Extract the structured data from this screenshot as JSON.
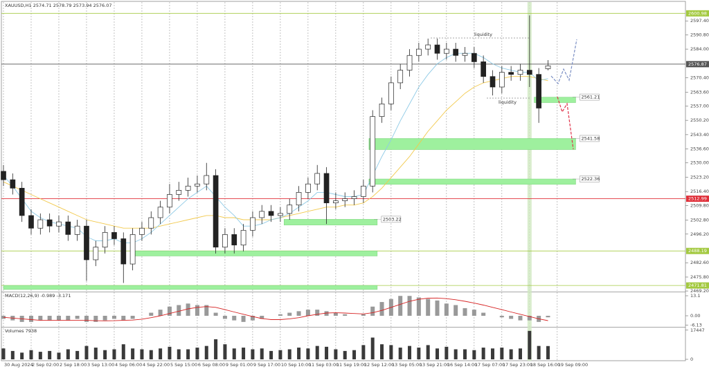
{
  "chart_data": [
    {
      "type": "candlestick",
      "title": "XAUUSD,H1",
      "categories": [
        "30 Aug 2024",
        null,
        null,
        "2 Sep 02:00",
        null,
        null,
        "2 Sep 18:00",
        null,
        null,
        "3 Sep 13:00",
        null,
        null,
        "4 Sep 06:00",
        null,
        null,
        "4 Sep 22:00",
        null,
        null,
        "5 Sep 15:00",
        null,
        null,
        "6 Sep 08:00",
        null,
        null,
        "9 Sep 01:00",
        null,
        null,
        "9 Sep 17:00",
        null,
        null,
        "10 Sep 10:00",
        null,
        null,
        "11 Sep 03:00",
        null,
        null,
        "11 Sep 19:00",
        null,
        null,
        "12 Sep 12:00",
        null,
        null,
        "13 Sep 05:00",
        null,
        null,
        "13 Sep 21:00",
        null,
        null,
        "16 Sep 14:00",
        null,
        null,
        "17 Sep 07:00",
        null,
        null,
        "17 Sep 23:00",
        null,
        null,
        "18 Sep 16:00",
        null,
        null,
        "19 Sep 09:00",
        null,
        null,
        null
      ],
      "open": [
        2526,
        2522,
        2518,
        2505,
        2499,
        2503,
        2500,
        2502,
        2496,
        2500,
        2484,
        2490,
        2497,
        2494,
        2482,
        2496,
        2499,
        2504,
        2509,
        2515,
        2517,
        2519,
        2520,
        2524,
        2490,
        2496,
        2491,
        2498,
        2504,
        2507,
        2505,
        2506,
        2510,
        2516,
        2520,
        2525,
        2511,
        2512,
        2513,
        2514,
        2519,
        2552,
        2558,
        2568,
        2574,
        2581,
        2584,
        2586,
        2582,
        2584,
        2581,
        2582,
        2578,
        2571,
        2566,
        2573,
        2572,
        2574,
        2572,
        2574.71,
        null,
        null,
        null,
        null
      ],
      "high": [
        2529,
        2525,
        2521,
        2508,
        2506,
        2506,
        2505,
        2505,
        2503,
        2503,
        2493,
        2500,
        2500,
        2497,
        2499,
        2502,
        2507,
        2512,
        2520,
        2521,
        2523,
        2524,
        2530,
        2527,
        2499,
        2499,
        2501,
        2507,
        2510,
        2510,
        2509,
        2513,
        2519,
        2523,
        2529,
        2528,
        2516,
        2516,
        2517,
        2522,
        2555,
        2561,
        2571,
        2577,
        2584,
        2587,
        2589,
        2589,
        2587,
        2587,
        2585,
        2585,
        2581,
        2574,
        2576,
        2576,
        2577,
        2600,
        2575,
        2578.79,
        null,
        null,
        null,
        null
      ],
      "low": [
        2519,
        2515,
        2502,
        2496,
        2496,
        2497,
        2497,
        2493,
        2493,
        2474,
        2481,
        2487,
        2491,
        2473,
        2479,
        2493,
        2496,
        2501,
        2506,
        2512,
        2514,
        2516,
        2517,
        2487,
        2487,
        2487,
        2488,
        2495,
        2501,
        2502,
        2502,
        2503,
        2507,
        2513,
        2517,
        2501,
        2508,
        2509,
        2510,
        2511,
        2516,
        2549,
        2555,
        2565,
        2571,
        2578,
        2581,
        2579,
        2579,
        2578,
        2578,
        2575,
        2568,
        2562,
        2563,
        2569,
        2569,
        2566,
        2549,
        2573.94,
        null,
        null,
        null,
        null
      ],
      "close": [
        2522,
        2518,
        2505,
        2499,
        2503,
        2500,
        2502,
        2496,
        2500,
        2484,
        2490,
        2497,
        2494,
        2482,
        2496,
        2499,
        2504,
        2509,
        2515,
        2517,
        2519,
        2520,
        2524,
        2490,
        2496,
        2491,
        2498,
        2504,
        2507,
        2505,
        2506,
        2510,
        2516,
        2520,
        2525,
        2511,
        2512,
        2513,
        2514,
        2519,
        2552,
        2558,
        2568,
        2574,
        2581,
        2584,
        2586,
        2582,
        2584,
        2581,
        2582,
        2578,
        2571,
        2566,
        2573,
        2572,
        2574,
        2572,
        2556,
        2576.07,
        null,
        null,
        null,
        null
      ],
      "series": [
        {
          "color": "#f2c94c",
          "values": [
            2521,
            2519,
            2517,
            2515,
            2513,
            2511,
            2509,
            2507,
            2505,
            2503,
            2502,
            2501,
            2500,
            2499,
            2499,
            2499,
            2499,
            2500,
            2501,
            2502,
            2503,
            2504,
            2505,
            2505,
            2504,
            2504,
            2503,
            2503,
            2503,
            2503,
            2504,
            2505,
            2506,
            2507,
            2508,
            2509,
            2509,
            2510,
            2510,
            2511,
            2514,
            2518,
            2523,
            2528,
            2533,
            2539,
            2545,
            2550,
            2555,
            2559,
            2563,
            2566,
            2568,
            2569,
            2570,
            2571,
            2571,
            2571,
            2570,
            2569,
            null,
            null,
            null,
            null
          ]
        },
        {
          "color": "#8ecae6",
          "values": [
            2524,
            2519,
            2513,
            2507,
            2504,
            2502,
            2501,
            2500,
            2499,
            2495,
            2493,
            2493,
            2494,
            2492,
            2492,
            2494,
            2497,
            2501,
            2505,
            2509,
            2513,
            2516,
            2519,
            2514,
            2509,
            2505,
            2500,
            2500,
            2501,
            2503,
            2504,
            2506,
            2509,
            2512,
            2516,
            2516,
            2515,
            2514,
            2514,
            2515,
            2524,
            2533,
            2541,
            2550,
            2558,
            2566,
            2572,
            2577,
            2580,
            2582,
            2582,
            2582,
            2580,
            2577,
            2575,
            2574,
            2573,
            2573,
            2569,
            2570,
            null,
            null,
            null,
            null
          ]
        }
      ],
      "ylim": [
        2468.9,
        2602.4
      ],
      "yticks": [
        {
          "value": 2597.4,
          "label": "2597.40"
        },
        {
          "value": 2590.8,
          "label": "2590.80"
        },
        {
          "value": 2584,
          "label": "2584.00"
        },
        {
          "value": 2570.4,
          "label": "2570.40"
        },
        {
          "value": 2563.6,
          "label": "2563.60"
        },
        {
          "value": 2557,
          "label": "2557.00"
        },
        {
          "value": 2550.2,
          "label": "2550.20"
        },
        {
          "value": 2543.4,
          "label": "2543.40"
        },
        {
          "value": 2536.6,
          "label": "2536.60"
        },
        {
          "value": 2530,
          "label": "2530.00"
        },
        {
          "value": 2523.2,
          "label": "2523.20"
        },
        {
          "value": 2516.4,
          "label": "2516.40"
        },
        {
          "value": 2509.8,
          "label": "2509.80"
        },
        {
          "value": 2502.8,
          "label": "2502.80"
        },
        {
          "value": 2496.2,
          "label": "2496.20"
        },
        {
          "value": 2482.6,
          "label": "2482.60"
        },
        {
          "value": 2475.8,
          "label": "2475.80"
        },
        {
          "value": 2469.2,
          "label": "2469.20"
        }
      ],
      "grid": "vertical",
      "price_markers": [
        {
          "value": 2600.98,
          "color": "#a3c940"
        },
        {
          "value": 2576.87,
          "color": "#555555"
        },
        {
          "value": 2512.99,
          "color": "#e0303a"
        }
      ],
      "zones": [
        {
          "top": 2561.21,
          "bottom": 2558.6,
          "start": 57.5,
          "end": 62,
          "label_side": "end"
        },
        {
          "top": 2541.58,
          "bottom": 2536.3,
          "start": 39.6,
          "end": 62,
          "label_side": "end"
        },
        {
          "top": 2522.36,
          "bottom": 2519.8,
          "start": 39.6,
          "end": 62,
          "label_side": "end"
        },
        {
          "top": 2503.22,
          "bottom": 2500.5,
          "start": 30.4,
          "end": 40.5,
          "label_side": "end"
        },
        {
          "top": 2488.19,
          "bottom": 2485.8,
          "start": 14,
          "end": 40.5,
          "label_side": "axis"
        },
        {
          "top": 2471.81,
          "bottom": 2469.9,
          "start": 0,
          "end": 40.5,
          "label_side": "axis"
        }
      ],
      "zone_color": "#9ef09e",
      "highlight": 57,
      "annotations": [
        "liquidity",
        "liquidity"
      ]
    },
    {
      "type": "macd",
      "title": "MACD(12,26,9)",
      "values": [
        -2,
        -3,
        -4,
        -4,
        -3,
        -3,
        -3,
        -3,
        -2,
        -4,
        -4,
        -3,
        -2,
        -3,
        -2,
        0,
        2,
        4,
        6,
        7,
        8,
        7,
        7,
        2,
        -2,
        -3,
        -4,
        -3,
        -2,
        0,
        1,
        2,
        3,
        4,
        4,
        3,
        2,
        1,
        0,
        1,
        6,
        9,
        11,
        13,
        13,
        12,
        11,
        10,
        8,
        7,
        5,
        4,
        2,
        0,
        -1,
        -2,
        -3,
        -3,
        -4,
        -0.989,
        null,
        null,
        null,
        null
      ],
      "signal": [
        -1,
        -1.5,
        -2,
        -2.5,
        -3,
        -3,
        -3,
        -3,
        -3,
        -3,
        -3.2,
        -3.3,
        -3.2,
        -3,
        -2.8,
        -2.2,
        -1.2,
        0,
        1.5,
        3,
        4.5,
        5.5,
        6,
        5.5,
        4,
        2.5,
        1,
        -0.5,
        -1.8,
        -2.5,
        -2.5,
        -2,
        -1.2,
        0,
        1,
        1.8,
        2,
        1.8,
        1.5,
        1.2,
        2,
        3.5,
        5.5,
        7.5,
        9.5,
        10.8,
        11.5,
        11.6,
        11.2,
        10.5,
        9.5,
        8.3,
        7,
        5.5,
        4,
        2.5,
        1,
        -0.5,
        -2,
        -3.171,
        null,
        null,
        null,
        null
      ],
      "color": "#999999",
      "signal_color": "#d62020",
      "ylim": [
        -6.78,
        15.36
      ],
      "yticks": [
        13.1,
        {
          "value": 0,
          "label": "0.00"
        },
        -6.13
      ]
    },
    {
      "type": "volume",
      "title": "Volumes",
      "values": [
        6500,
        5000,
        4000,
        5500,
        4500,
        5000,
        4000,
        6000,
        5000,
        8000,
        7000,
        5500,
        6000,
        9000,
        6500,
        6000,
        5500,
        6500,
        7500,
        6000,
        6000,
        7000,
        8000,
        12000,
        9000,
        6500,
        7000,
        6000,
        6500,
        5000,
        5500,
        6000,
        7000,
        6500,
        8000,
        7500,
        6000,
        5000,
        5500,
        8500,
        13000,
        9000,
        8500,
        7000,
        8000,
        7000,
        8500,
        6500,
        7500,
        6000,
        6000,
        5500,
        7000,
        6500,
        7000,
        6000,
        6500,
        17000,
        8000,
        7938,
        null,
        null,
        null,
        null
      ],
      "color": "#3a3a3a",
      "ylim": [
        0,
        19000
      ],
      "yticks": [
        17447,
        0
      ]
    }
  ]
}
